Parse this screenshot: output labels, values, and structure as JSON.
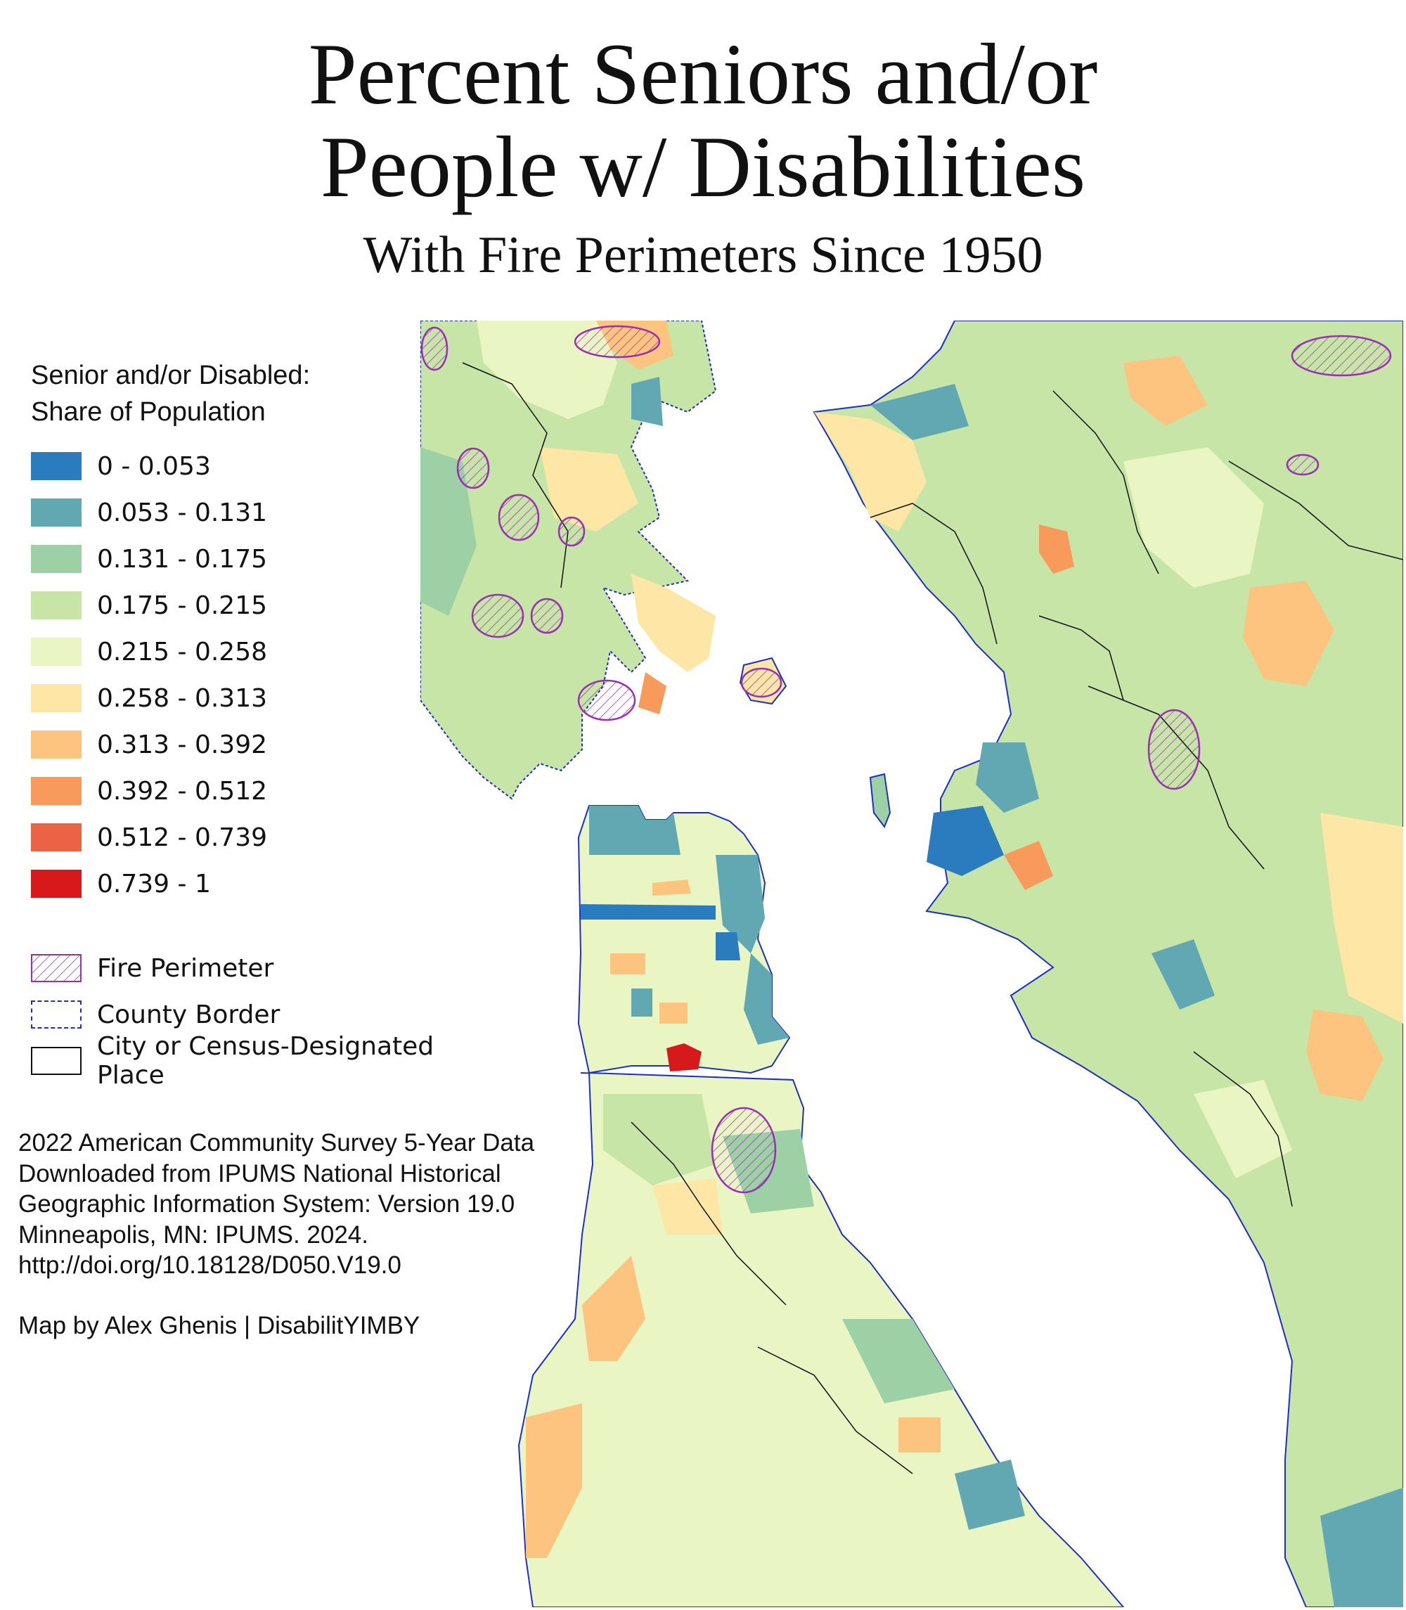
{
  "title": {
    "line1": "Percent Seniors and/or",
    "line2": "People w/ Disabilities",
    "subtitle": "With Fire Perimeters Since 1950"
  },
  "legend": {
    "heading_line1": "Senior and/or Disabled:",
    "heading_line2": "Share of Population",
    "classes": [
      {
        "label": "0 - 0.053",
        "color": "#2b7bbf"
      },
      {
        "label": "0.053 - 0.131",
        "color": "#62a8b3"
      },
      {
        "label": "0.131 - 0.175",
        "color": "#9dd0a5"
      },
      {
        "label": "0.175 - 0.215",
        "color": "#c6e5a7"
      },
      {
        "label": "0.215 - 0.258",
        "color": "#eaf5c4"
      },
      {
        "label": "0.258 - 0.313",
        "color": "#fde6a6"
      },
      {
        "label": "0.313 - 0.392",
        "color": "#fcc47f"
      },
      {
        "label": "0.392 - 0.512",
        "color": "#f89a5c"
      },
      {
        "label": "0.512 - 0.739",
        "color": "#ea6344"
      },
      {
        "label": "0.739 - 1",
        "color": "#d7191c"
      }
    ],
    "layers": [
      {
        "label": "Fire Perimeter",
        "color": "#9a2fb4"
      },
      {
        "label": "County Border",
        "color": "#1d2fc4"
      },
      {
        "label": "City or Census-Designated Place",
        "color": "#111111"
      }
    ]
  },
  "credits": {
    "line1": "2022 American Community Survey 5-Year Data",
    "line2": "Downloaded from IPUMS National Historical",
    "line3": "Geographic Information System: Version 19.0",
    "line4": "Minneapolis, MN: IPUMS. 2024.",
    "line5": "http://doi.org/10.18128/D050.V19.0",
    "author": "Map by Alex Ghenis | DisabilitYIMBY"
  },
  "colors": {
    "water": "#ffffff",
    "county_border": "#1d2fc4",
    "fire_perimeter": "#9a2fb4",
    "city_border": "#111111"
  }
}
